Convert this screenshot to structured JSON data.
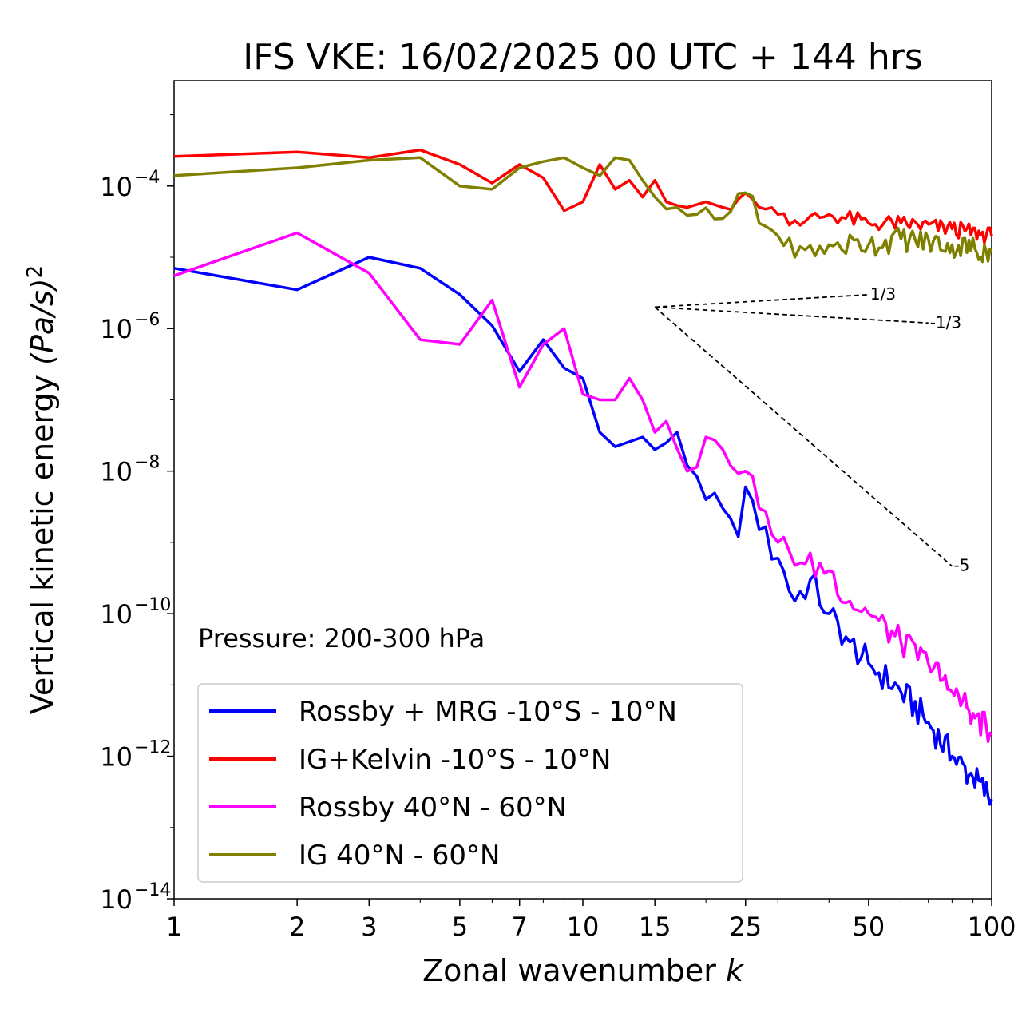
{
  "chart_data": {
    "type": "line",
    "title": "IFS VKE: 16/02/2025 00 UTC + 144 hrs",
    "xlabel": "Zonal wavenumber",
    "xlabel_italic": "k",
    "ylabel": "Vertical kinetic energy",
    "ylabel_unit": "(Pa/s)",
    "ylabel_unit_exp": "2",
    "x_scale": "log",
    "y_scale": "log",
    "xlim": [
      1,
      100
    ],
    "ylim": [
      1e-14,
      0.003
    ],
    "x_ticks": [
      1,
      2,
      3,
      5,
      7,
      10,
      15,
      25,
      50,
      100
    ],
    "x_tick_labels": [
      "1",
      "2",
      "3",
      "5",
      "7",
      "10",
      "15",
      "25",
      "50",
      "100"
    ],
    "y_ticks": [
      -4,
      -6,
      -8,
      -10,
      -12,
      -14
    ],
    "y_tick_base": "10",
    "y_tick_exponents": [
      "−4",
      "−6",
      "−8",
      "−10",
      "−12",
      "−14"
    ],
    "grid": false,
    "legend_placement": "lower-left",
    "annotation": "Pressure: 200-300 hPa",
    "reference_lines": [
      {
        "label": "1/3",
        "slope": 0.3333,
        "x_start": 15,
        "x_end": 50,
        "y_start": 2e-06
      },
      {
        "label": "-1/3",
        "slope": -0.3333,
        "x_start": 15,
        "x_end": 70,
        "y_start": 2e-06
      },
      {
        "label": "-5",
        "slope": -5,
        "x_start": 15,
        "x_end": 80,
        "y_start": 2e-06
      }
    ],
    "series": [
      {
        "name": "Rossby + MRG -10°S - 10°N",
        "color": "#0000ff",
        "anchors": [
          [
            1,
            7e-06
          ],
          [
            2,
            3.5e-06
          ],
          [
            3,
            1e-05
          ],
          [
            4,
            7e-06
          ],
          [
            5,
            3e-06
          ],
          [
            6,
            1.1e-06
          ],
          [
            7,
            2.5e-07
          ],
          [
            8,
            7e-07
          ],
          [
            9,
            2.8e-07
          ],
          [
            10,
            2e-07
          ],
          [
            11,
            3.5e-08
          ],
          [
            12,
            2.2e-08
          ],
          [
            14,
            3e-08
          ],
          [
            15,
            2e-08
          ],
          [
            16,
            2.5e-08
          ],
          [
            17,
            3.5e-08
          ],
          [
            18,
            1.2e-08
          ],
          [
            20,
            4e-09
          ],
          [
            22,
            3e-09
          ],
          [
            24,
            1.2e-09
          ],
          [
            25,
            6e-09
          ],
          [
            27,
            1.5e-09
          ],
          [
            30,
            6e-10
          ],
          [
            33,
            1.5e-10
          ],
          [
            36,
            3e-10
          ],
          [
            40,
            1e-10
          ],
          [
            45,
            4e-11
          ],
          [
            50,
            2e-11
          ],
          [
            60,
            8e-12
          ],
          [
            70,
            3e-12
          ],
          [
            80,
            1e-12
          ],
          [
            90,
            5e-13
          ],
          [
            100,
            2.5e-13
          ]
        ],
        "noise": 0.22
      },
      {
        "name": "IG+Kelvin -10°S - 10°N",
        "color": "#ff0000",
        "anchors": [
          [
            1,
            0.00026
          ],
          [
            2,
            0.0003
          ],
          [
            3,
            0.00025
          ],
          [
            4,
            0.00032
          ],
          [
            5,
            0.0002
          ],
          [
            6,
            0.00011
          ],
          [
            7,
            0.0002
          ],
          [
            8,
            0.00013
          ],
          [
            9,
            4.5e-05
          ],
          [
            10,
            6e-05
          ],
          [
            11,
            0.0002
          ],
          [
            12,
            9e-05
          ],
          [
            13,
            0.00012
          ],
          [
            14,
            7e-05
          ],
          [
            15,
            0.00012
          ],
          [
            16,
            6e-05
          ],
          [
            18,
            5e-05
          ],
          [
            20,
            6e-05
          ],
          [
            22,
            5e-05
          ],
          [
            25,
            8e-05
          ],
          [
            27,
            5e-05
          ],
          [
            30,
            4e-05
          ],
          [
            35,
            3.2e-05
          ],
          [
            40,
            4e-05
          ],
          [
            50,
            3e-05
          ],
          [
            60,
            3e-05
          ],
          [
            80,
            2.5e-05
          ],
          [
            100,
            2e-05
          ]
        ],
        "noise": 0.12
      },
      {
        "name": "Rossby 40°N - 60°N",
        "color": "#ff00ff",
        "anchors": [
          [
            1,
            5.5e-06
          ],
          [
            2,
            2.2e-05
          ],
          [
            3,
            6e-06
          ],
          [
            4,
            7e-07
          ],
          [
            5,
            6e-07
          ],
          [
            6,
            2.5e-06
          ],
          [
            7,
            1.5e-07
          ],
          [
            8,
            6e-07
          ],
          [
            9,
            1e-06
          ],
          [
            10,
            1.2e-07
          ],
          [
            11,
            1e-07
          ],
          [
            12,
            1e-07
          ],
          [
            13,
            2e-07
          ],
          [
            14,
            1e-07
          ],
          [
            15,
            3.5e-08
          ],
          [
            16,
            5e-08
          ],
          [
            18,
            1e-08
          ],
          [
            20,
            3e-08
          ],
          [
            22,
            2e-08
          ],
          [
            25,
            1e-08
          ],
          [
            27,
            3e-09
          ],
          [
            30,
            1e-09
          ],
          [
            35,
            5e-10
          ],
          [
            40,
            4e-10
          ],
          [
            45,
            1.5e-10
          ],
          [
            50,
            1e-10
          ],
          [
            60,
            4e-11
          ],
          [
            70,
            2e-11
          ],
          [
            80,
            8e-12
          ],
          [
            90,
            4e-12
          ],
          [
            100,
            2e-12
          ]
        ],
        "noise": 0.2
      },
      {
        "name": "IG 40°N - 60°N",
        "color": "#808000",
        "anchors": [
          [
            1,
            0.00014
          ],
          [
            2,
            0.00018
          ],
          [
            3,
            0.00023
          ],
          [
            4,
            0.00025
          ],
          [
            5,
            0.0001
          ],
          [
            6,
            9e-05
          ],
          [
            7,
            0.00018
          ],
          [
            8,
            0.00022
          ],
          [
            9,
            0.00025
          ],
          [
            10,
            0.00018
          ],
          [
            11,
            0.00014
          ],
          [
            12,
            0.00025
          ],
          [
            13,
            0.00023
          ],
          [
            14,
            0.00012
          ],
          [
            15,
            7e-05
          ],
          [
            17,
            5e-05
          ],
          [
            19,
            4e-05
          ],
          [
            22,
            3.5e-05
          ],
          [
            25,
            8e-05
          ],
          [
            27,
            3e-05
          ],
          [
            30,
            2e-05
          ],
          [
            33,
            1e-05
          ],
          [
            40,
            1.5e-05
          ],
          [
            50,
            1.5e-05
          ],
          [
            60,
            1.8e-05
          ],
          [
            80,
            1.5e-05
          ],
          [
            100,
            1.2e-05
          ]
        ],
        "noise": 0.18
      }
    ]
  }
}
